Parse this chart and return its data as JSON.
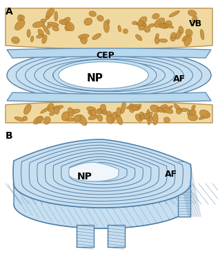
{
  "fig_width": 3.16,
  "fig_height": 3.71,
  "dpi": 100,
  "bg_color": "#ffffff",
  "panel_A_label": "A",
  "panel_B_label": "B",
  "vb_color": "#f0d9a0",
  "vb_edge_color": "#b89050",
  "bone_spot_color": "#c8903a",
  "bone_spot_edge": "#a07028",
  "cep_color": "#b8d8ee",
  "cep_edge_color": "#6090b8",
  "af_color": "#c8dff0",
  "af_edge_color": "#5080a8",
  "np_color": "#e8f2f8",
  "np_edge_color": "#7aaac8",
  "label_VB": "VB",
  "label_CEP": "CEP",
  "label_NP_A": "NP",
  "label_AF_A": "AF",
  "label_NP_B": "NP",
  "label_AF_B": "AF",
  "line_color": "#5080a8",
  "hatch_color": "#8ab8d8"
}
